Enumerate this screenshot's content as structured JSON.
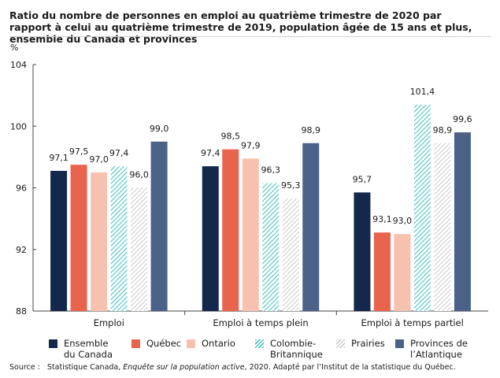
{
  "title": "Ratio du nombre de personnes en emploi au quatrième trimestre de 2020 par rapport à celui au quatrième trimestre de 2019, population âgée de 15 ans et plus, ensemble du Canada et provinces",
  "source": {
    "prefix": "Source :",
    "text_before": "Statistique Canada, ",
    "italic": "Enquête sur la population active",
    "text_after": ", 2020. Adapté par l’Institut de la statistique du Québec."
  },
  "chart_data": {
    "type": "bar",
    "title": "Ratio du nombre de personnes en emploi au quatrième trimestre de 2020 par rapport à celui au quatrième trimestre de 2019, population âgée de 15 ans et plus, ensemble du Canada et provinces",
    "ylabel": "%",
    "ylim": [
      88,
      104
    ],
    "yticks": [
      "88",
      "92",
      "96",
      "100",
      "104"
    ],
    "grid": false,
    "legend_position": "bottom",
    "categories": [
      "Emploi",
      "Emploi à temps plein",
      "Emploi à temps partiel"
    ],
    "series": [
      {
        "name": "Ensemble\ndu Canada",
        "color": "#14284b",
        "pattern": "solid",
        "values": [
          97.1,
          97.4,
          95.7
        ],
        "labels": [
          "97,1",
          "97,4",
          "95,7"
        ]
      },
      {
        "name": "Québec",
        "color": "#e8644f",
        "pattern": "solid",
        "values": [
          97.5,
          98.5,
          93.1
        ],
        "labels": [
          "97,5",
          "98,5",
          "93,1"
        ]
      },
      {
        "name": "Ontario",
        "color": "#f7c1b0",
        "pattern": "solid",
        "values": [
          97.0,
          97.9,
          93.0
        ],
        "labels": [
          "97,0",
          "97,9",
          "93,0"
        ]
      },
      {
        "name": "Colombie-\nBritannique",
        "color": "#4cc4c7",
        "pattern": "hatch",
        "values": [
          97.4,
          96.3,
          101.4
        ],
        "labels": [
          "97,4",
          "96,3",
          "101,4"
        ]
      },
      {
        "name": "Prairies",
        "color": "#cfcfcf",
        "pattern": "hatch",
        "values": [
          96.0,
          95.3,
          98.9
        ],
        "labels": [
          "96,0",
          "95,3",
          "98,9"
        ]
      },
      {
        "name": "Provinces de\nl’Atlantique",
        "color": "#4b6187",
        "pattern": "solid",
        "values": [
          99.0,
          98.9,
          99.6
        ],
        "labels": [
          "99,0",
          "98,9",
          "99,6"
        ]
      }
    ]
  }
}
